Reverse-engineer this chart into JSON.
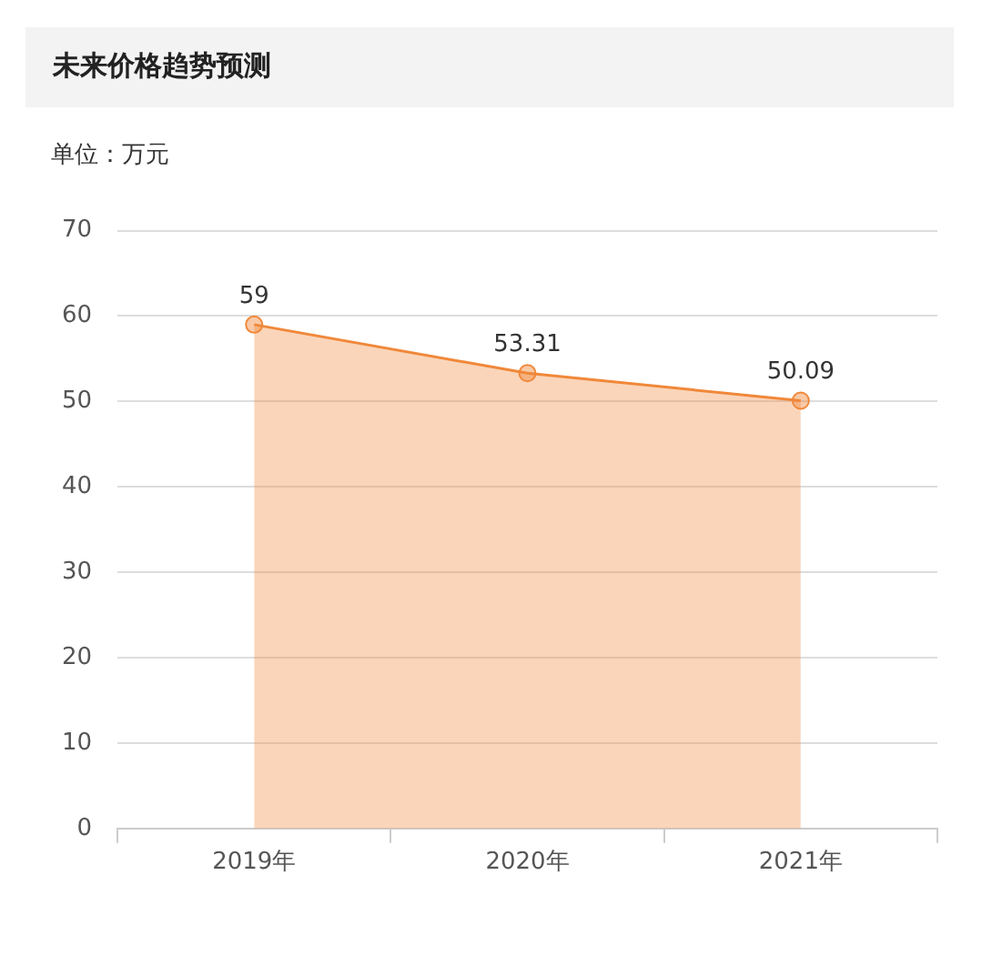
{
  "chart_data": {
    "type": "area",
    "title": "未来价格趋势预测",
    "subtitle": "单位：万元",
    "categories": [
      "2019年",
      "2020年",
      "2021年"
    ],
    "series": [
      {
        "color": "#f0883a",
        "values": [
          59,
          53.31,
          50.09
        ]
      }
    ],
    "ylim": [
      0,
      70
    ],
    "yticks": [
      0,
      10,
      20,
      30,
      40,
      50,
      60,
      70
    ],
    "grid": "y",
    "legend": false,
    "marker": "circle",
    "data_labels": true
  }
}
